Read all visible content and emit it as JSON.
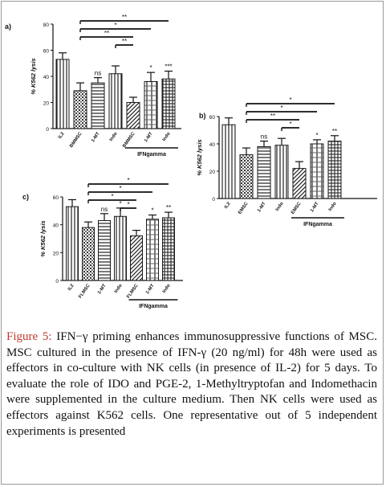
{
  "figure": {
    "label": "Figure 5:",
    "text": "IFN−γ priming enhances immunosuppressive functions of MSC. MSC cultured in the presence of IFN-γ (20 ng/ml) for 48h were used as effectors in co-culture with NK cells (in presence of IL-2) for 5 days. To evaluate the role of IDO and PGE-2, 1-Methyltryptofan and Indomethacin were supplemented in the culture medium. Then NK cells were used as effectors against K562 cells. One representative out of 5 independent experiments is presented"
  },
  "colors": {
    "bar_stroke": "#1a1a1a",
    "ink": "#111111",
    "caption_label": "#c0392b"
  },
  "chart_data": [
    {
      "panel": "a)",
      "type": "bar",
      "ylabel": "% K562 lysis",
      "ylim": [
        0,
        80
      ],
      "yticks": [
        0,
        20,
        40,
        60,
        80
      ],
      "categories": [
        "IL2",
        "BMMSC",
        "1-MT",
        "Indo",
        "BMMSC",
        "1-MT",
        "Indo"
      ],
      "values": [
        53,
        29,
        35,
        42,
        20,
        36,
        38
      ],
      "errors": [
        5,
        6,
        4,
        6,
        4,
        7,
        6
      ],
      "patterns": [
        "vlines",
        "dots",
        "hlines",
        "vlines",
        "diag",
        "checker",
        "grid"
      ],
      "above_bar_labels": [
        "",
        "",
        "ns",
        "",
        "",
        "*",
        "***"
      ],
      "group_label": "IFNgamma",
      "group_start": 4,
      "brackets": [
        {
          "from": 1,
          "to": 6,
          "label": "**"
        },
        {
          "from": 1,
          "to": 5,
          "label": "*"
        },
        {
          "from": 1,
          "to": 4,
          "label": "**"
        },
        {
          "from": 3,
          "to": 4,
          "label": "**"
        }
      ]
    },
    {
      "panel": "b)",
      "type": "bar",
      "ylabel": "% K562 lysis",
      "ylim": [
        0,
        60
      ],
      "yticks": [
        0,
        20,
        40,
        60
      ],
      "categories": [
        "IL2",
        "EMSC",
        "1-MT",
        "Indo",
        "EMSC",
        "1-MT",
        "Indo"
      ],
      "values": [
        54,
        32,
        38,
        39,
        22,
        40,
        42
      ],
      "errors": [
        5,
        5,
        4,
        5,
        5,
        3,
        4
      ],
      "patterns": [
        "vlines",
        "dots",
        "hlines",
        "vlines",
        "diag",
        "checker",
        "grid"
      ],
      "above_bar_labels": [
        "",
        "",
        "ns",
        "",
        "",
        "*",
        "**"
      ],
      "group_label": "IFNgamma",
      "group_start": 4,
      "brackets": [
        {
          "from": 1,
          "to": 6,
          "label": "*"
        },
        {
          "from": 1,
          "to": 5,
          "label": "*"
        },
        {
          "from": 1,
          "to": 4,
          "label": "**"
        },
        {
          "from": 3,
          "to": 4,
          "label": "*"
        }
      ]
    },
    {
      "panel": "c)",
      "type": "bar",
      "ylabel": "% K562 lysis",
      "ylim": [
        0,
        60
      ],
      "yticks": [
        0,
        20,
        40,
        60
      ],
      "categories": [
        "IL2",
        "FLMSC",
        "1-MT",
        "Indo",
        "FLMSC",
        "1-MT",
        "Indo"
      ],
      "values": [
        53,
        38,
        43,
        46,
        32,
        44,
        45
      ],
      "errors": [
        5,
        4,
        5,
        6,
        4,
        3,
        4
      ],
      "patterns": [
        "vlines",
        "dots",
        "hlines",
        "vlines",
        "diag",
        "checker",
        "grid"
      ],
      "above_bar_labels": [
        "",
        "",
        "ns",
        "*",
        "",
        "*",
        "**"
      ],
      "group_label": "IFNgamma",
      "group_start": 4,
      "brackets": [
        {
          "from": 1,
          "to": 6,
          "label": "*"
        },
        {
          "from": 1,
          "to": 5,
          "label": "*"
        },
        {
          "from": 1,
          "to": 4,
          "label": "*"
        },
        {
          "from": 3,
          "to": 4,
          "label": "*"
        }
      ]
    }
  ]
}
